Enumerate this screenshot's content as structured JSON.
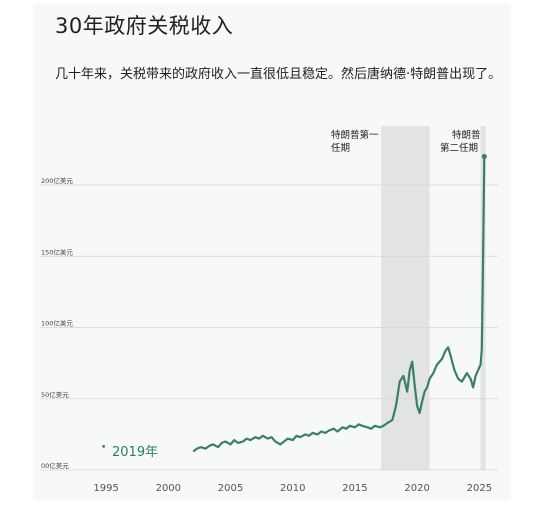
{
  "chart_data": {
    "type": "line",
    "title": "30年政府关税收入",
    "subtitle": "几十年来，关税带来的政府收入一直很低且稳定。然后唐纳德·特朗普出现了。",
    "xlabel": "",
    "ylabel": "",
    "xlim": [
      1992.5,
      2026.5
    ],
    "ylim": [
      0,
      235
    ],
    "x_ticks": [
      1995,
      2000,
      2005,
      2010,
      2015,
      2020,
      2025
    ],
    "y_ticks": [
      {
        "value": 0,
        "label": "00亿美元"
      },
      {
        "value": 50,
        "label": "50亿美元"
      },
      {
        "value": 100,
        "label": "100亿美元"
      },
      {
        "value": 150,
        "label": "150亿美元"
      },
      {
        "value": 200,
        "label": "200亿美元"
      }
    ],
    "grid": "horizontal",
    "shaded_periods": [
      {
        "start": 2017.1,
        "end": 2021.0,
        "label_lines": [
          "特朗普第一",
          "任期"
        ]
      },
      {
        "start": 2025.1,
        "end": 2025.5,
        "label_lines": [
          "特朗普",
          "第二任期"
        ]
      }
    ],
    "marker": {
      "x": 1994.8,
      "y": 18,
      "label": "2019年"
    },
    "line_color": "#3a7f6a",
    "shade_color": "#e2e4e4",
    "series": [
      {
        "name": "",
        "x": [
          2002.0,
          2002.3,
          2002.6,
          2003.0,
          2003.3,
          2003.6,
          2004.0,
          2004.3,
          2004.6,
          2005.0,
          2005.3,
          2005.6,
          2006.0,
          2006.3,
          2006.6,
          2007.0,
          2007.3,
          2007.6,
          2008.0,
          2008.3,
          2008.6,
          2009.0,
          2009.3,
          2009.6,
          2010.0,
          2010.3,
          2010.6,
          2011.0,
          2011.3,
          2011.6,
          2012.0,
          2012.3,
          2012.6,
          2013.0,
          2013.3,
          2013.6,
          2014.0,
          2014.3,
          2014.6,
          2015.0,
          2015.3,
          2015.6,
          2016.0,
          2016.3,
          2016.6,
          2017.0,
          2017.3,
          2017.6,
          2018.0,
          2018.3,
          2018.6,
          2018.9,
          2019.2,
          2019.4,
          2019.6,
          2019.8,
          2020.0,
          2020.2,
          2020.4,
          2020.6,
          2020.8,
          2021.0,
          2021.3,
          2021.6,
          2022.0,
          2022.3,
          2022.5,
          2022.7,
          2023.0,
          2023.3,
          2023.6,
          2024.0,
          2024.3,
          2024.5,
          2024.7,
          2025.0,
          2025.1,
          2025.2,
          2025.3,
          2025.4
        ],
        "values": [
          13,
          15,
          16,
          15,
          17,
          18,
          16,
          19,
          20,
          18,
          21,
          19,
          20,
          22,
          21,
          23,
          22,
          24,
          22,
          23,
          20,
          18,
          20,
          22,
          21,
          24,
          23,
          25,
          24,
          26,
          25,
          27,
          26,
          28,
          29,
          27,
          30,
          29,
          31,
          30,
          32,
          31,
          30,
          29,
          31,
          30,
          31,
          33,
          35,
          45,
          62,
          66,
          55,
          70,
          76,
          60,
          45,
          40,
          48,
          55,
          58,
          64,
          68,
          74,
          78,
          84,
          86,
          80,
          70,
          64,
          62,
          68,
          64,
          58,
          66,
          72,
          74,
          85,
          150,
          220
        ]
      }
    ]
  }
}
